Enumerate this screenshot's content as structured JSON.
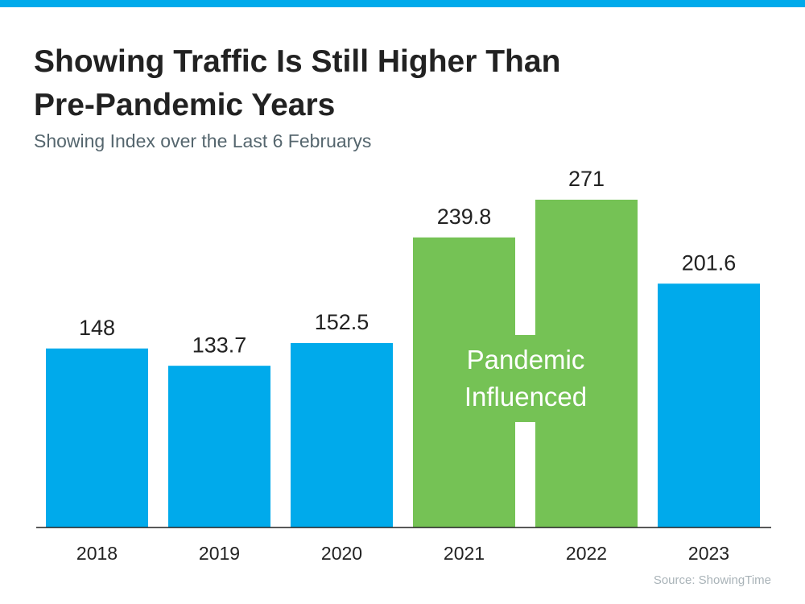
{
  "chart_data": {
    "type": "bar",
    "title": "Showing Traffic Is Still Higher Than Pre-Pandemic Years",
    "subtitle": "Showing Index over the Last 6 Februarys",
    "categories": [
      "2018",
      "2019",
      "2020",
      "2021",
      "2022",
      "2023"
    ],
    "values": [
      148,
      133.7,
      152.5,
      239.8,
      271,
      201.6
    ],
    "colors": [
      "#00aaeb",
      "#00aaeb",
      "#00aaeb",
      "#75c255",
      "#75c255",
      "#00aaeb"
    ],
    "annotation": "Pandemic Influenced",
    "source": "Source: ShowingTime",
    "ylim": [
      0,
      300
    ]
  }
}
